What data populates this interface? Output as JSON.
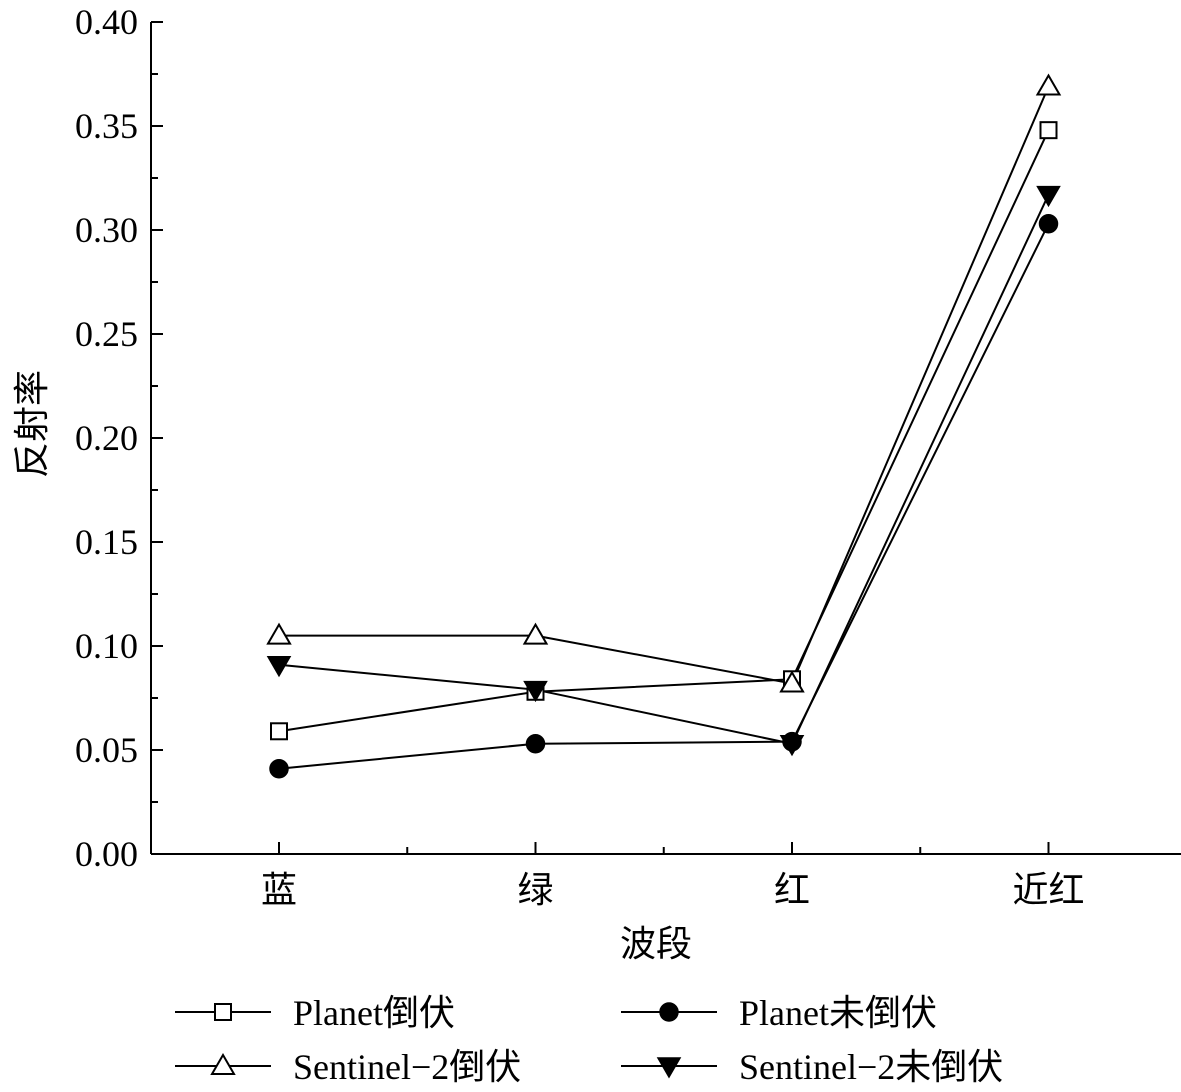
{
  "chart_data": {
    "type": "line",
    "xlabel": "波段",
    "ylabel": "反射率",
    "categories": [
      "蓝",
      "绿",
      "红",
      "近红"
    ],
    "ylim": [
      0.0,
      0.4
    ],
    "yticks": [
      "0.00",
      "0.05",
      "0.10",
      "0.15",
      "0.20",
      "0.25",
      "0.30",
      "0.35",
      "0.40"
    ],
    "grid": false,
    "legend_position": "bottom",
    "series": [
      {
        "name": "Planet倒伏",
        "marker": "open-square",
        "values": [
          0.059,
          0.078,
          0.084,
          0.348
        ]
      },
      {
        "name": "Planet未倒伏",
        "marker": "filled-circle",
        "values": [
          0.041,
          0.053,
          0.054,
          0.303
        ]
      },
      {
        "name": "Sentinel−2倒伏",
        "marker": "open-triangle-up",
        "values": [
          0.105,
          0.105,
          0.082,
          0.369
        ]
      },
      {
        "name": "Sentinel−2未倒伏",
        "marker": "filled-triangle-down",
        "values": [
          0.091,
          0.079,
          0.053,
          0.317
        ]
      }
    ],
    "colors": {
      "line": "#000000",
      "marker_fill_open": "#ffffff",
      "marker_fill_solid": "#000000"
    }
  }
}
